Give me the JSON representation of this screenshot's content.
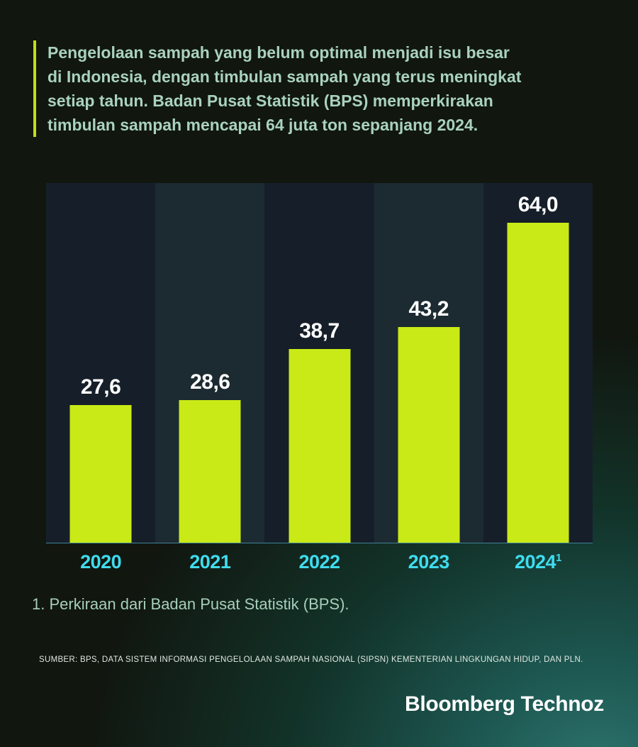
{
  "headline": {
    "lines": [
      "Pengelolaan sampah yang belum optimal menjadi isu besar",
      "di Indonesia, dengan timbulan sampah yang terus meningkat",
      "setiap tahun. Badan Pusat Statistik (BPS) memperkirakan",
      "timbulan sampah mencapai 64 juta ton sepanjang 2024."
    ],
    "accent_color": "#c3dc16",
    "text_color": "#a9d2bd"
  },
  "chart_data": {
    "type": "bar",
    "categories": [
      "2020",
      "2021",
      "2022",
      "2023",
      "2024"
    ],
    "values": [
      27.6,
      28.6,
      38.7,
      43.2,
      64.0
    ],
    "value_labels": [
      "27,6",
      "28,6",
      "38,7",
      "43,2",
      "64,0"
    ],
    "last_category_superscript": "1",
    "title": "",
    "xlabel": "",
    "ylabel": "",
    "ylim": [
      0,
      72
    ],
    "grid": false,
    "legend_position": "none",
    "bar_color": "#c9ea16",
    "column_bg_odd": "#161f29",
    "column_bg_even": "#1c2a31",
    "axis_line_color": "#3f8296",
    "x_label_color": "#3fdcef",
    "value_label_color": "#ffffff"
  },
  "footnote": {
    "text": "1. Perkiraan dari Badan Pusat Statistik (BPS)."
  },
  "source": {
    "text": "SUMBER: BPS, DATA SISTEM INFORMASI PENGELOLAAN SAMPAH NASIONAL (SIPSN) KEMENTERIAN LINGKUNGAN HIDUP, DAN PLN."
  },
  "branding": {
    "logo_text": "Bloomberg Technoz"
  }
}
